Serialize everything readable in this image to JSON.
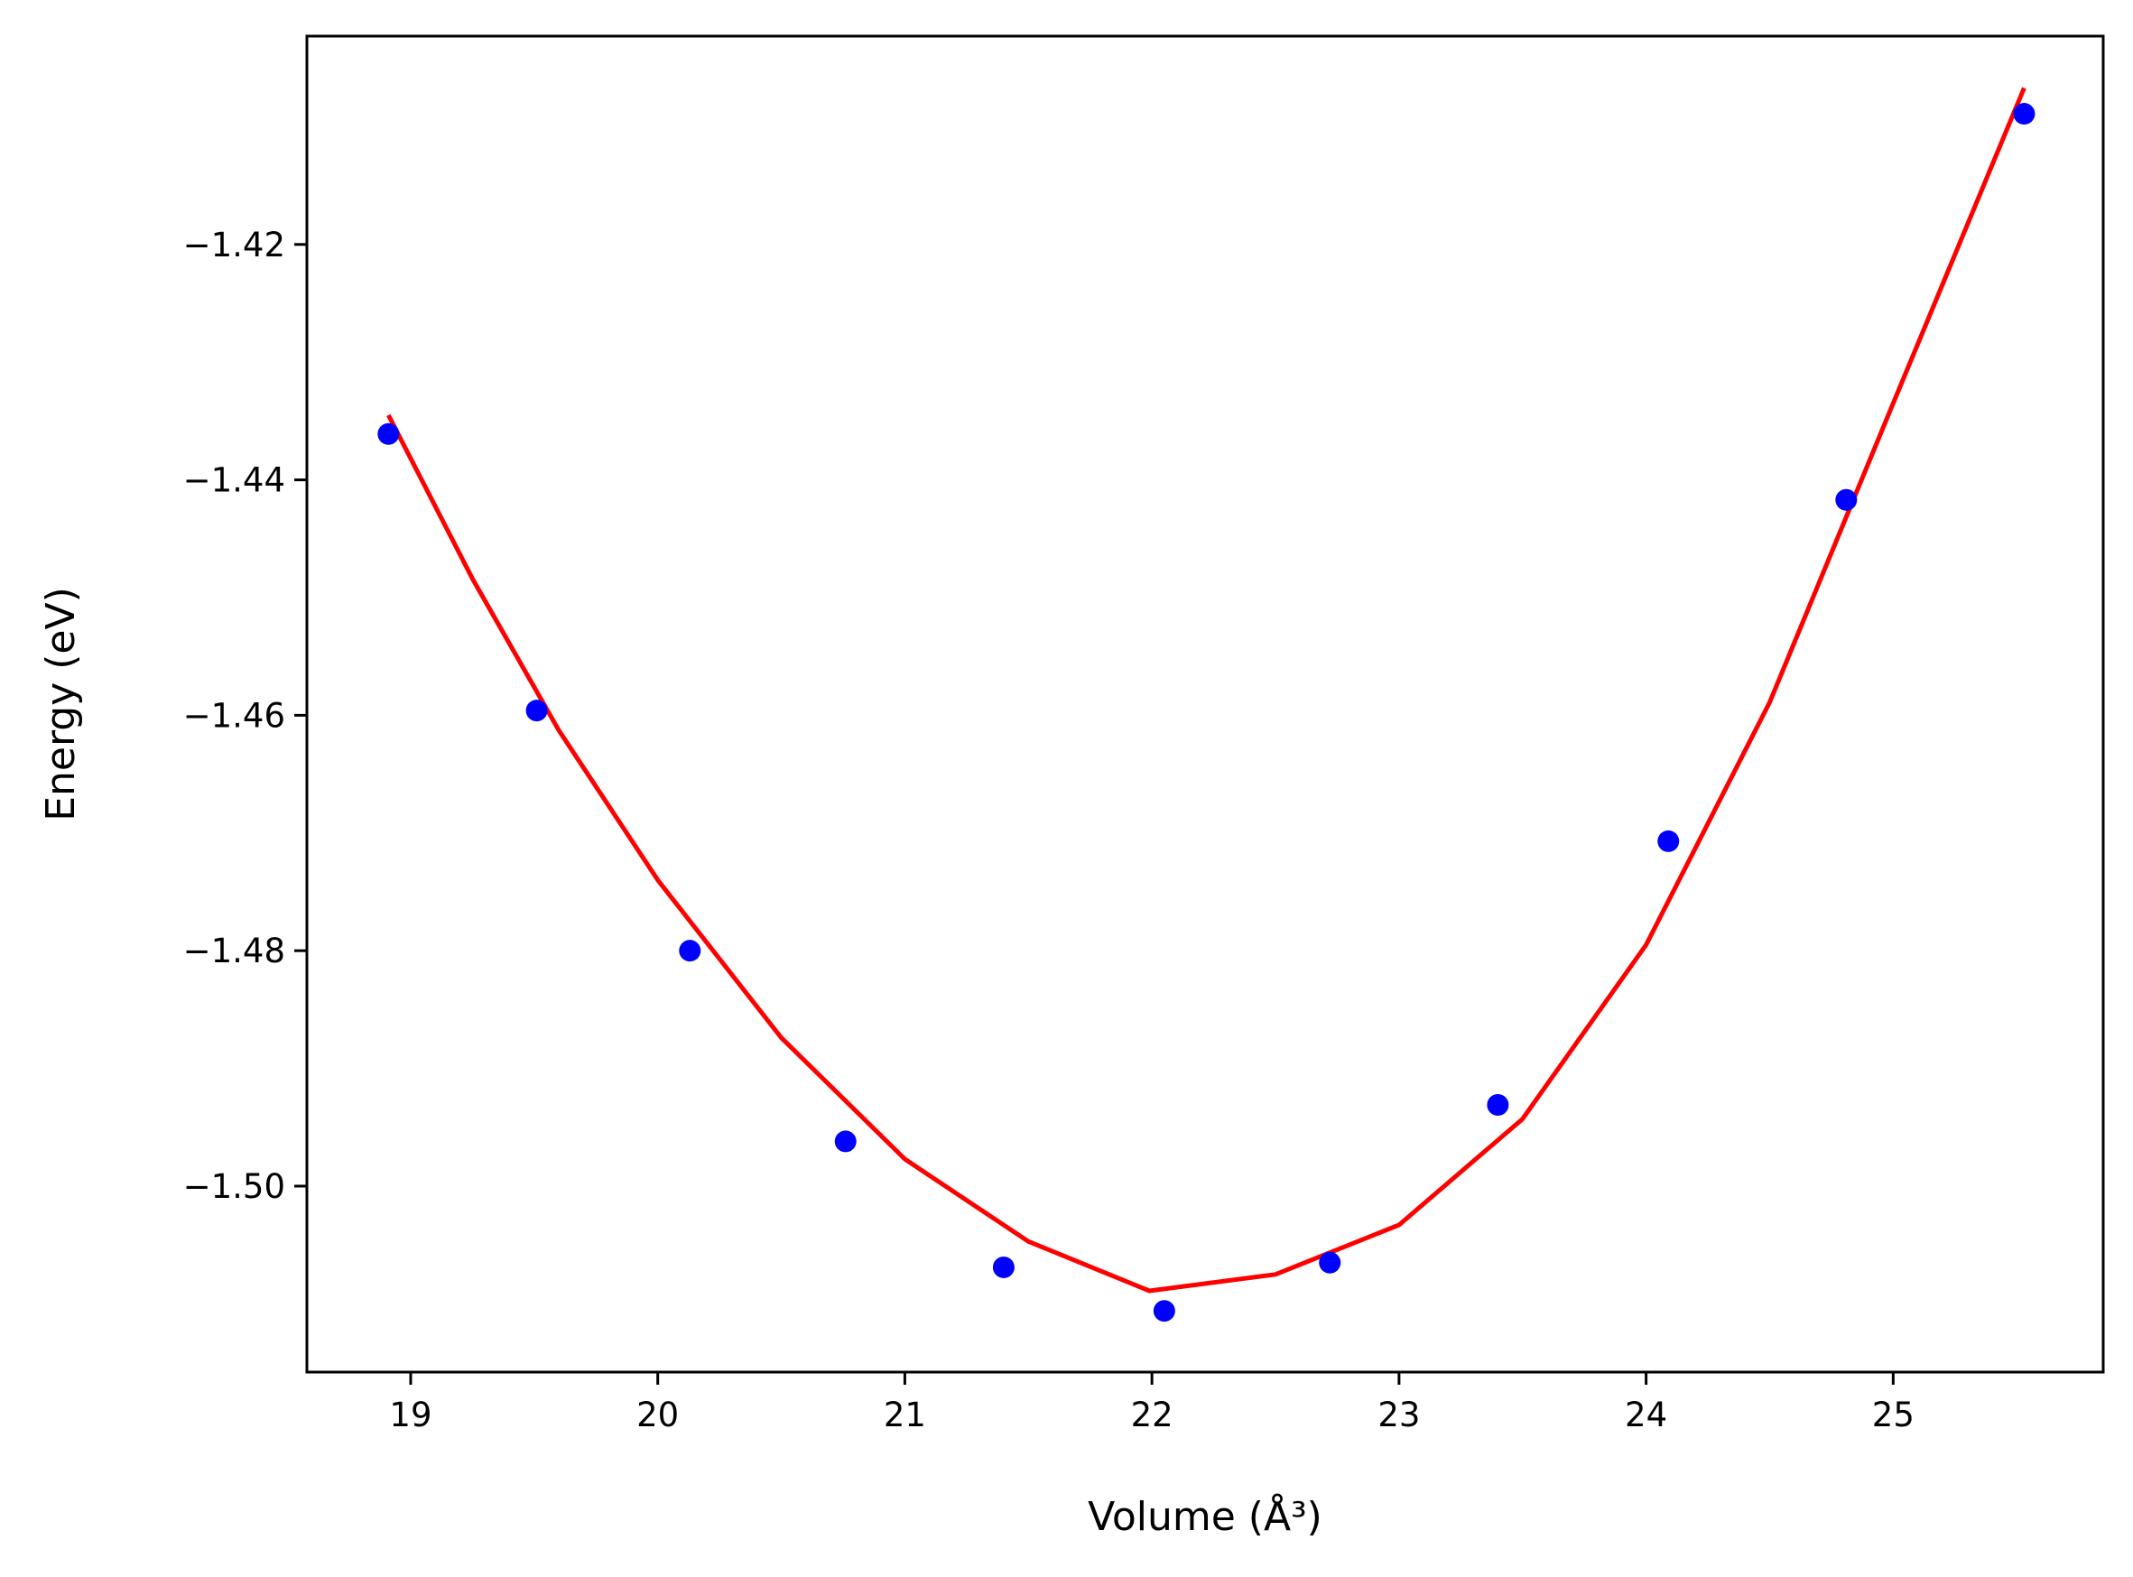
{
  "chart_data": {
    "type": "scatter",
    "xlabel": "Volume (Å³)",
    "ylabel": "Energy (eV)",
    "xlim": [
      18.58,
      25.85
    ],
    "ylim": [
      -1.5158,
      -1.4023
    ],
    "x_ticks": [
      19,
      20,
      21,
      22,
      23,
      24,
      25
    ],
    "y_ticks": [
      -1.42,
      -1.44,
      -1.46,
      -1.48,
      -1.5
    ],
    "x_tick_labels": [
      "19",
      "20",
      "21",
      "22",
      "23",
      "24",
      "25"
    ],
    "y_tick_labels": [
      "−1.42",
      "−1.44",
      "−1.46",
      "−1.48",
      "−1.50"
    ],
    "grid": false,
    "series": [
      {
        "kind": "scatter",
        "color": "#0000ff",
        "x": [
          18.91,
          19.51,
          20.13,
          20.76,
          21.4,
          22.05,
          22.72,
          23.4,
          24.09,
          24.81,
          25.53
        ],
        "y": [
          -1.4361,
          -1.4596,
          -1.48,
          -1.4962,
          -1.5069,
          -1.5106,
          -1.5065,
          -1.4931,
          -1.4707,
          -1.4417,
          -1.4089
        ]
      },
      {
        "kind": "line",
        "color": "#ff0000",
        "x": [
          18.91,
          19.25,
          19.6,
          20.0,
          20.5,
          21.0,
          21.5,
          21.99,
          22.5,
          23.0,
          23.5,
          24.0,
          24.5,
          25.0,
          25.53
        ],
        "y": [
          -1.4345,
          -1.4484,
          -1.4613,
          -1.474,
          -1.4874,
          -1.4977,
          -1.5047,
          -1.5089,
          -1.5075,
          -1.5033,
          -1.4943,
          -1.4795,
          -1.4589,
          -1.4335,
          -1.4067
        ]
      }
    ]
  }
}
